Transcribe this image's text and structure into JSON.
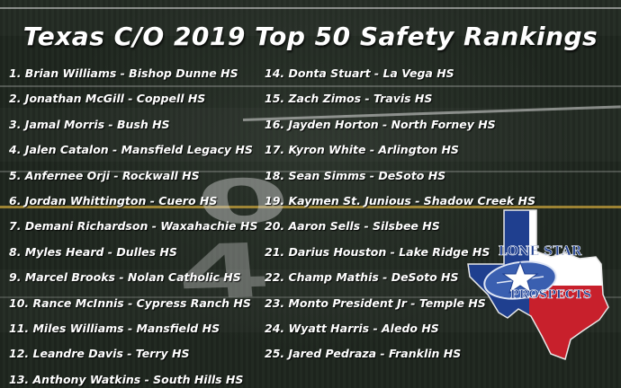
{
  "title": "Texas C/O 2019 Top 50 Safety Rankings",
  "rankings": [
    "1. Brian Williams - Bishop Dunne HS",
    "2. Jonathan McGill - Coppell HS",
    "3. Jamal Morris - Bush HS",
    "4. Jalen Catalon - Mansfield Legacy HS",
    "5. Anfernee Orji - Rockwall HS",
    "6. Jordan Whittington - Cuero HS",
    "7. Demani Richardson - Waxahachie HS",
    "8. Myles Heard - Dulles HS",
    "9. Marcel Brooks - Nolan Catholic HS",
    "10. Rance McInnis - Cypress Ranch HS",
    "11. Miles Williams - Mansfield HS",
    "12. Leandre Davis - Terry HS",
    "13. Anthony Watkins - South Hills HS",
    "14. Donta Stuart - La Vega HS",
    "15. Zach Zimos - Travis HS",
    "16. Jayden Horton - North Forney HS",
    "17. Kyron White - Arlington HS",
    "18. Sean Simms - DeSoto HS",
    "19. Kaymen St. Junious - Shadow Creek HS",
    "20. Aaron Sells - Silsbee HS",
    "21. Darius Houston - Lake Ridge HS",
    "22. Champ Mathis - DeSoto HS",
    "23. Monto President Jr - Temple HS",
    "24. Wyatt Harris - Aledo HS",
    "25. Jared Pedraza - Franklin HS"
  ],
  "logo": {
    "top_text": "LONE STAR",
    "bottom_text": "PROSPECTS",
    "colors": {
      "blue": "#1f3f8f",
      "red": "#c8202c",
      "white": "#ffffff",
      "text": "#1f3f8f"
    }
  },
  "field_numbers": [
    "0",
    "4"
  ]
}
